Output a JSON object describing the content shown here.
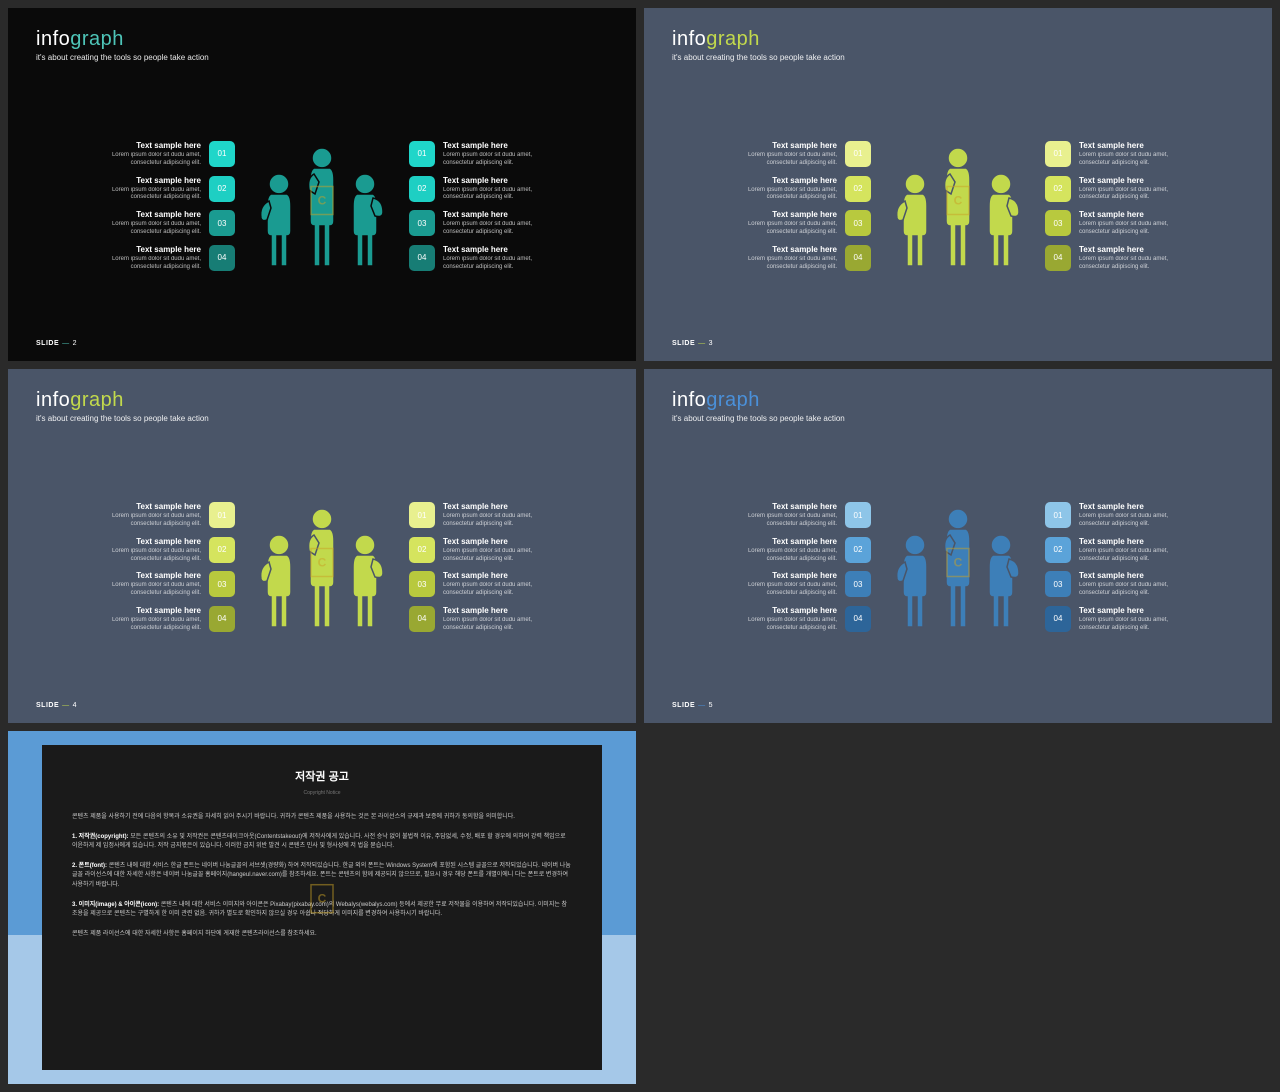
{
  "page_bg": "#2a2a2a",
  "slides": [
    {
      "bg": "#0a0a0a",
      "title_p1": "info",
      "title_p2": "graph",
      "title_c1": "#ffffff",
      "title_c2": "#4ec5b8",
      "subtitle": "it's about creating the tools so people take action",
      "subtitle_color": "#ffffff",
      "sample_heading": "Text sample here",
      "sample_body": "Lorem ipsum dolor sit dudu amet, consectetur adipiscing elit.",
      "left_boxes": [
        "#1fd6c9",
        "#1ecfc3",
        "#1a9b91",
        "#177d75"
      ],
      "right_boxes": [
        "#1fd6c9",
        "#1ecfc3",
        "#1a9b91",
        "#177d75"
      ],
      "numbers": [
        "01",
        "02",
        "03",
        "04"
      ],
      "figure_color": "#1a9b91",
      "footer_label": "SLIDE",
      "footer_num": "2",
      "footer_color": "#ffffff",
      "dash_color": "#4ec5b8"
    },
    {
      "bg": "#4a5568",
      "title_p1": "info",
      "title_p2": "graph",
      "title_c1": "#ffffff",
      "title_c2": "#c2d94c",
      "subtitle": "it's about creating the tools so people take action",
      "subtitle_color": "#ffffff",
      "sample_heading": "Text sample here",
      "sample_body": "Lorem ipsum dolor sit dudu amet, consectetur adipiscing elit.",
      "left_boxes": [
        "#e8f08f",
        "#d5e45e",
        "#b8c93e",
        "#99a832"
      ],
      "right_boxes": [
        "#e8f08f",
        "#d5e45e",
        "#b8c93e",
        "#99a832"
      ],
      "numbers": [
        "01",
        "02",
        "03",
        "04"
      ],
      "figure_color": "#c2d94c",
      "footer_label": "SLIDE",
      "footer_num": "3",
      "footer_color": "#ffffff",
      "dash_color": "#c2d94c"
    },
    {
      "bg": "#4a5568",
      "title_p1": "info",
      "title_p2": "graph",
      "title_c1": "#ffffff",
      "title_c2": "#c2d94c",
      "subtitle": "it's about creating the tools so people take action",
      "subtitle_color": "#ffffff",
      "sample_heading": "Text sample here",
      "sample_body": "Lorem ipsum dolor sit dudu amet, consectetur adipiscing elit.",
      "left_boxes": [
        "#e8f08f",
        "#d5e45e",
        "#b8c93e",
        "#99a832"
      ],
      "right_boxes": [
        "#e8f08f",
        "#d5e45e",
        "#b8c93e",
        "#99a832"
      ],
      "numbers": [
        "01",
        "02",
        "03",
        "04"
      ],
      "figure_color": "#c2d94c",
      "footer_label": "SLIDE",
      "footer_num": "4",
      "footer_color": "#ffffff",
      "dash_color": "#c2d94c"
    },
    {
      "bg": "#4a5568",
      "title_p1": "info",
      "title_p2": "graph",
      "title_c1": "#ffffff",
      "title_c2": "#4a90d9",
      "subtitle": "it's about creating the tools so people take action",
      "subtitle_color": "#ffffff",
      "sample_heading": "Text sample here",
      "sample_body": "Lorem ipsum dolor sit dudu amet, consectetur adipiscing elit.",
      "left_boxes": [
        "#8ec5e8",
        "#5ba3d9",
        "#3d7fb8",
        "#2d6599"
      ],
      "right_boxes": [
        "#8ec5e8",
        "#5ba3d9",
        "#3d7fb8",
        "#2d6599"
      ],
      "numbers": [
        "01",
        "02",
        "03",
        "04"
      ],
      "figure_color": "#3d7fb8",
      "footer_label": "SLIDE",
      "footer_num": "5",
      "footer_color": "#ffffff",
      "dash_color": "#4a90d9"
    }
  ],
  "copyright": {
    "bg_top": "#5b9bd5",
    "bg_bottom": "#a5c8e8",
    "panel_bg": "#1a1a1a",
    "title": "저작권 공고",
    "subtitle": "Copyright Notice",
    "p0": "콘텐츠 제품을 사용하기 전에 다음의 항목과 소유권을 자세히 읽어 주시기 바랍니다. 귀하가 콘텐츠 제품을 사용하는 것은 본 라이선스의 규제과 보증에 귀하가 동의함을 의미합니다.",
    "p1_label": "1. 저작권(copyright):",
    "p1": " 모든 콘텐츠의 소유 및 저작권은 콘텐츠테이크아웃(Contentstakeout)에 저작사에게 있습니다. 사전 승낙 없이 불법적 이유, 주담없세, 수정, 배포 할 경우에 의하여 강력 책임으로 이윤하게 제 임정사에게 있습니다. 저작 금지몫은이 있습니다. 이러한 금지 위반 발견 시 콘텐츠 민사 및 형사성에 저 법을 묻습니다.",
    "p2_label": "2. 폰트(font):",
    "p2": " 콘텐츠 내에 대한 서비스 한글 폰트는 네이버 나눔글꼴의 서브셋(경량화) 하여 저작되있습니다. 한글 외의 폰트는 Windows System에 포함된 시스템 글꼴으로 저작되있습니다. 네이버 나눔글꼴 라이선스에 대한 자세한 사항은 네이버 나눔글꼴 홈페이지(hangeul.naver.com)를 참조하세요. 폰트는 콘텐츠의 함께 제공되지 않으므로, 필요시 경우 해당 폰트를 개별이에니 다는 폰트로 변경하여 사용하기 바랍니다.",
    "p3_label": "3. 이미지(image) & 아이콘(icon):",
    "p3": " 콘텐츠 내에 대한 서비스 이미지와 아이콘은 Pixabay(pixabay.com)의 Webalys(webalys.com) 등에서 제공한 무료 저작물을 이용하여 저작되있습니다. 이미지는 참조용을 제공으로 콘텐츠는 구별하게 한 이미 관련 없음. 귀하가 별도로 확인하지 않으실 경우 아쉽나 적당하게 이미지를 변경하여 사용하시기 바랍니다.",
    "p4": "콘텐츠 제품 라이선스에 대한 자세한 사항은 홈페이지 하단에 게재한 콘텐츠라이선스를 참조하세요."
  }
}
